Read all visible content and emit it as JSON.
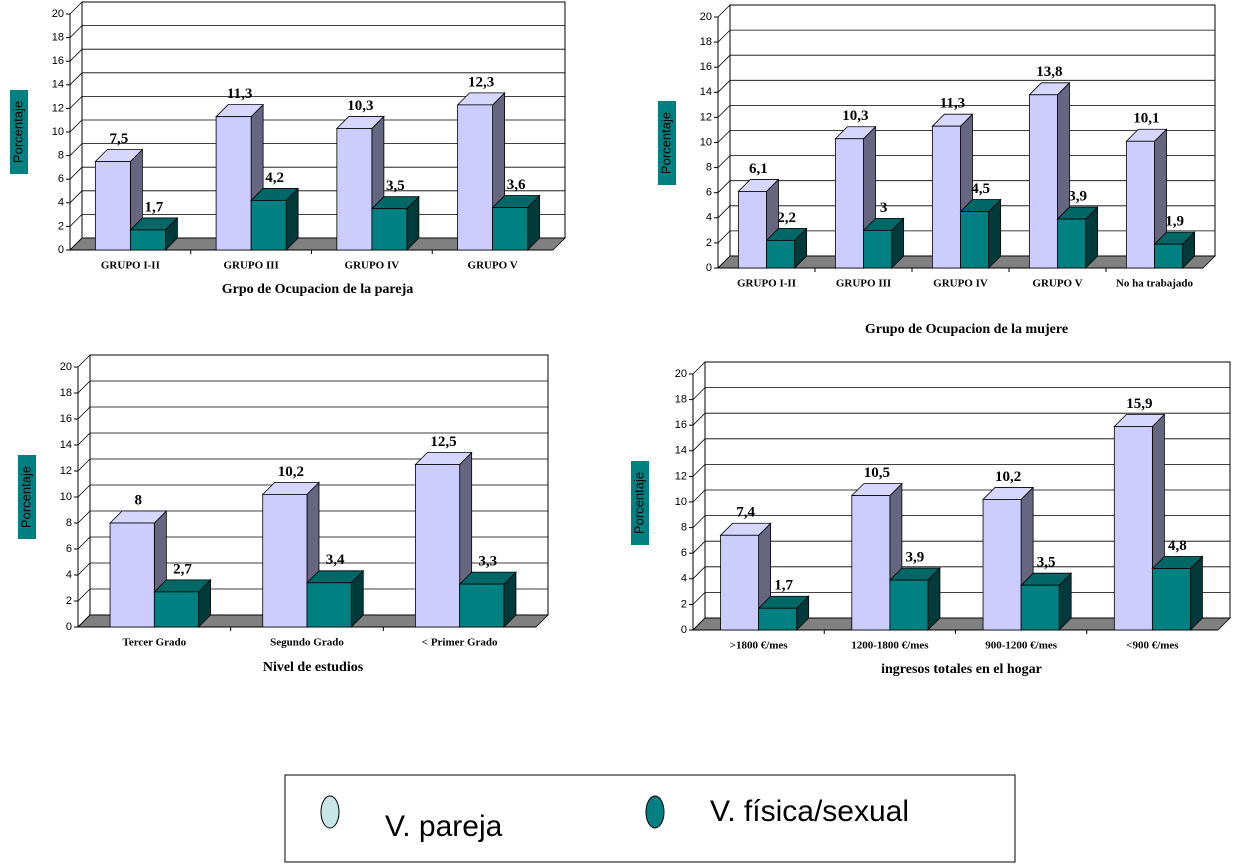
{
  "legend": {
    "entries": [
      {
        "name": "V. pareja",
        "color": "#ccccff"
      },
      {
        "name": "V. física/sexual",
        "color": "#008080"
      }
    ]
  },
  "chart_data": [
    {
      "type": "bar3d",
      "xlabel": "Grpo de Ocupacion de la pareja",
      "ylabel": "Porcentaje",
      "categories": [
        "GRUPO I-II",
        "GRUPO III",
        "GRUPO IV",
        "GRUPO V"
      ],
      "series": [
        {
          "values": [
            7.5,
            11.3,
            10.3,
            12.3
          ],
          "value_labels": [
            "7,5",
            "11,3",
            "10,3",
            "12,3"
          ]
        },
        {
          "values": [
            1.7,
            4.2,
            3.5,
            3.6
          ],
          "value_labels": [
            "1,7",
            "4,2",
            "3,5",
            "3,6"
          ]
        }
      ],
      "ylim": [
        0,
        20
      ],
      "yticks": [
        0,
        2,
        4,
        6,
        8,
        10,
        12,
        14,
        16,
        18,
        20
      ],
      "grid": true
    },
    {
      "type": "bar3d",
      "xlabel": "Grupo de Ocupacion de la mujere",
      "ylabel": "Porcentaje",
      "categories": [
        "GRUPO I-II",
        "GRUPO III",
        "GRUPO IV",
        "GRUPO V",
        "No ha trabajado"
      ],
      "series": [
        {
          "values": [
            6.1,
            10.3,
            11.3,
            13.8,
            10.1
          ],
          "value_labels": [
            "6,1",
            "10,3",
            "11,3",
            "13,8",
            "10,1"
          ]
        },
        {
          "values": [
            2.2,
            3,
            4.5,
            3.9,
            1.9
          ],
          "value_labels": [
            "2,2",
            "3",
            "4,5",
            "3,9",
            "1,9"
          ]
        }
      ],
      "ylim": [
        0,
        20
      ],
      "yticks": [
        0,
        2,
        4,
        6,
        8,
        10,
        12,
        14,
        16,
        18,
        20
      ],
      "grid": true
    },
    {
      "type": "bar3d",
      "xlabel": "Nivel de estudios",
      "ylabel": "Porcentaje",
      "categories": [
        "Tercer Grado",
        "Segundo Grado",
        "< Primer Grado"
      ],
      "series": [
        {
          "values": [
            8,
            10.2,
            12.5
          ],
          "value_labels": [
            "8",
            "10,2",
            "12,5"
          ]
        },
        {
          "values": [
            2.7,
            3.4,
            3.3
          ],
          "value_labels": [
            "2,7",
            "3,4",
            "3,3"
          ]
        }
      ],
      "ylim": [
        0,
        20
      ],
      "yticks": [
        0,
        2,
        4,
        6,
        8,
        10,
        12,
        14,
        16,
        18,
        20
      ],
      "grid": true
    },
    {
      "type": "bar3d",
      "xlabel": "ingresos totales en el hogar",
      "ylabel": "Porcentaje",
      "categories": [
        ">1800 €/mes",
        "1200-1800 €/mes",
        "900-1200 €/mes",
        "<900 €/mes"
      ],
      "series": [
        {
          "values": [
            7.4,
            10.5,
            10.2,
            15.9
          ],
          "value_labels": [
            "7,4",
            "10,5",
            "10,2",
            "15,9"
          ]
        },
        {
          "values": [
            1.7,
            3.9,
            3.5,
            4.8
          ],
          "value_labels": [
            "1,7",
            "3,9",
            "3,5",
            "4,8"
          ]
        }
      ],
      "ylim": [
        0,
        20
      ],
      "yticks": [
        0,
        2,
        4,
        6,
        8,
        10,
        12,
        14,
        16,
        18,
        20
      ],
      "grid": true
    }
  ]
}
